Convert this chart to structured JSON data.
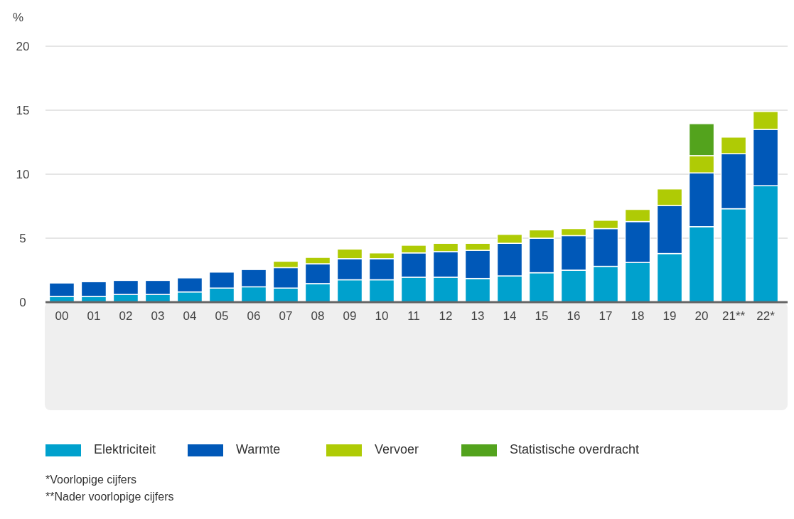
{
  "chart_data": {
    "type": "bar",
    "stacked": true,
    "ylabel": "%",
    "categories": [
      "00",
      "01",
      "02",
      "03",
      "04",
      "05",
      "06",
      "07",
      "08",
      "09",
      "10",
      "11",
      "12",
      "13",
      "14",
      "15",
      "16",
      "17",
      "18",
      "19",
      "20",
      "21**",
      "22*"
    ],
    "series": [
      {
        "name": "Elektriciteit",
        "color": "#00a1cd",
        "values": [
          0.45,
          0.45,
          0.6,
          0.6,
          0.8,
          1.1,
          1.2,
          1.1,
          1.45,
          1.75,
          1.75,
          1.95,
          1.95,
          1.85,
          2.05,
          2.3,
          2.5,
          2.8,
          3.1,
          3.8,
          5.9,
          7.3,
          9.1
        ]
      },
      {
        "name": "Warmte",
        "color": "#0058b8",
        "values": [
          1.05,
          1.15,
          1.1,
          1.1,
          1.1,
          1.25,
          1.35,
          1.6,
          1.55,
          1.65,
          1.65,
          1.9,
          2.0,
          2.2,
          2.55,
          2.7,
          2.7,
          2.95,
          3.2,
          3.75,
          4.2,
          4.3,
          4.4
        ]
      },
      {
        "name": "Vervoer",
        "color": "#afcb05",
        "values": [
          null,
          null,
          null,
          null,
          null,
          null,
          null,
          0.5,
          0.5,
          0.75,
          0.45,
          0.6,
          0.65,
          0.55,
          0.7,
          0.65,
          0.55,
          0.65,
          0.95,
          1.3,
          1.35,
          1.3,
          1.4
        ]
      },
      {
        "name": "Statistische overdracht",
        "color": "#53a31d",
        "values": [
          null,
          null,
          null,
          null,
          null,
          null,
          null,
          null,
          null,
          null,
          null,
          null,
          null,
          null,
          null,
          null,
          null,
          null,
          null,
          null,
          2.5,
          null,
          null
        ]
      }
    ],
    "ylim": [
      0,
      20
    ],
    "yticks": [
      0,
      5,
      10,
      15,
      20
    ],
    "grid": "y",
    "legend": "bottom",
    "annotations": [
      "*Voorlopige cijfers",
      "**Nader voorlopige cijfers"
    ]
  }
}
